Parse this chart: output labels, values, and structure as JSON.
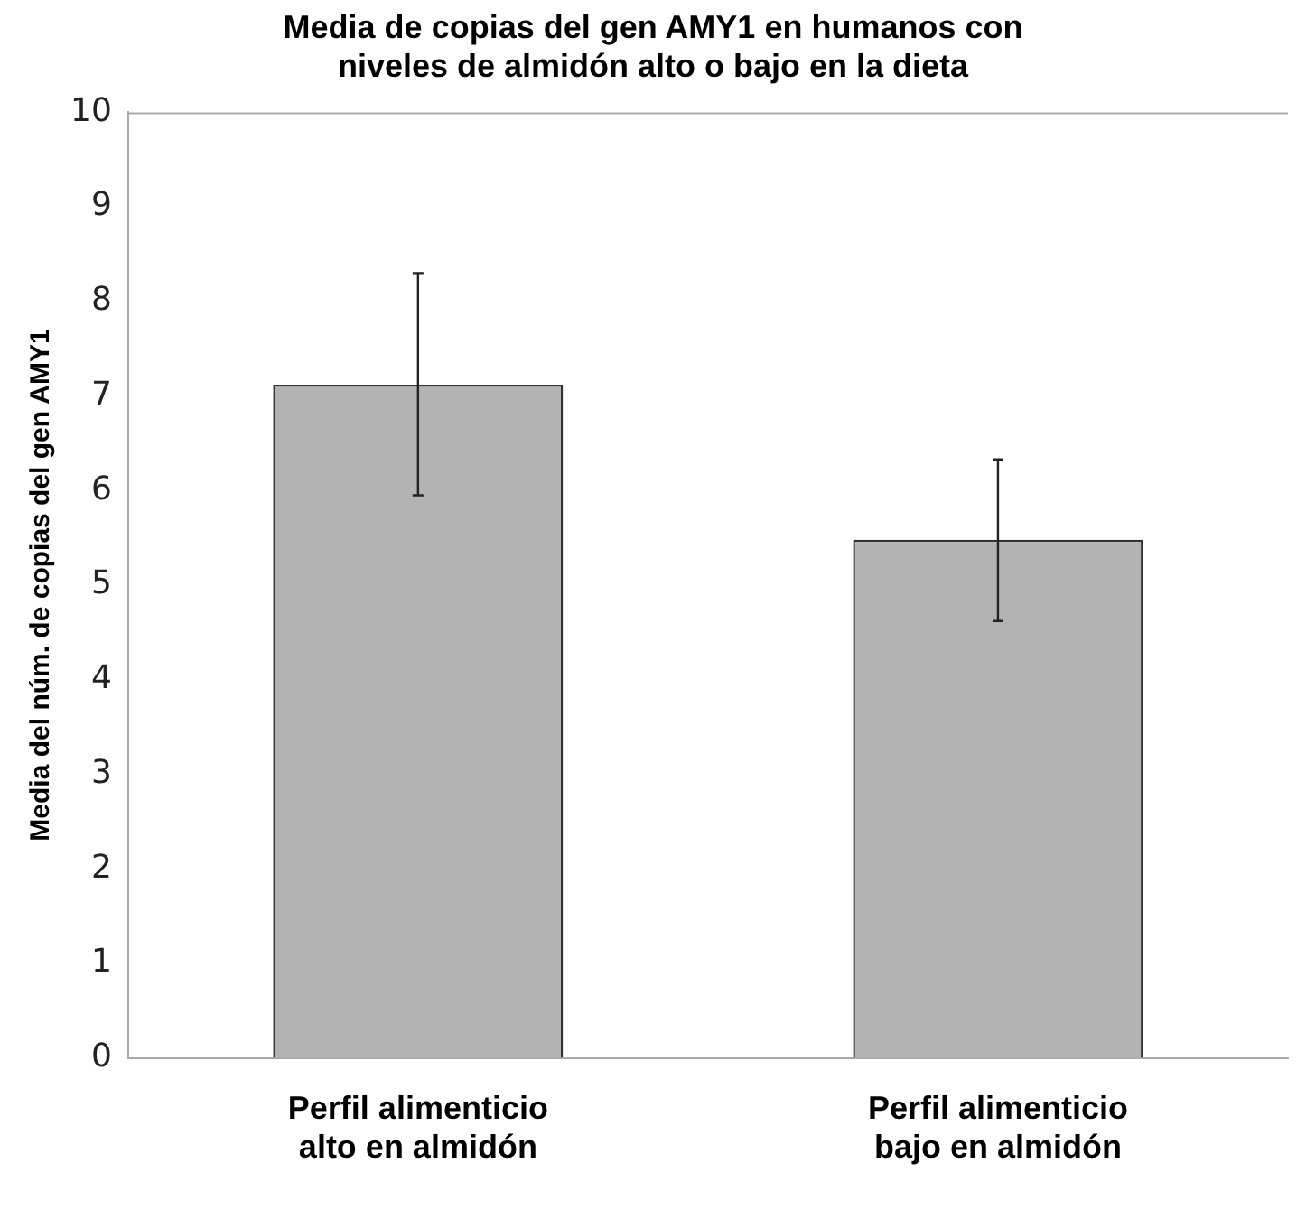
{
  "chart_data": {
    "type": "bar",
    "title": "Media de copias del gen AMY1 en humanos con\nniveles de almidón alto o bajo en la dieta",
    "ylabel": "Media del núm. de copias del gen AMY1",
    "categories": [
      "Perfil alimenticio\nalto en almidón",
      "Perfil alimenticio\nbajo en almidón"
    ],
    "values": [
      7.12,
      5.48
    ],
    "color": "#b3b3b3",
    "errors": [
      [
        5.95,
        8.3
      ],
      [
        4.62,
        6.33
      ]
    ],
    "ylim": [
      0,
      10
    ],
    "yticks": [
      0,
      1,
      2,
      3,
      4,
      5,
      6,
      7,
      8,
      9,
      10
    ],
    "grid": false,
    "legend": false
  }
}
